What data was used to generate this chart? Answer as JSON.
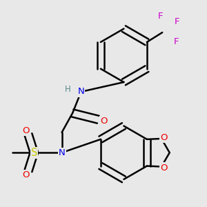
{
  "background_color": "#e8e8e8",
  "bond_color": "#000000",
  "bond_width": 1.8,
  "atom_colors": {
    "C": "#000000",
    "H": "#5a8a8a",
    "N": "#0000ee",
    "O": "#ee0000",
    "S": "#cccc00",
    "F": "#cc00cc"
  },
  "font_size": 8.5
}
